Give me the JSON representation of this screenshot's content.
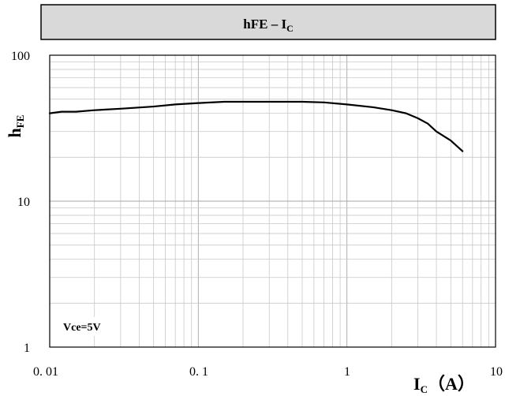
{
  "chart_data": {
    "type": "line",
    "title": {
      "main": "hFE – I",
      "sub": "C"
    },
    "xlabel": {
      "main": "I",
      "sub": "C",
      "unit": "（A）"
    },
    "ylabel": {
      "main": "h",
      "sub": "FE"
    },
    "x_scale": "log",
    "y_scale": "log",
    "xlim": [
      0.01,
      10
    ],
    "ylim": [
      1,
      100
    ],
    "x_ticks": [
      0.01,
      0.1,
      1,
      10
    ],
    "x_tick_labels": [
      "0. 01",
      "0. 1",
      "1",
      "10"
    ],
    "y_ticks": [
      1,
      10,
      100
    ],
    "y_tick_labels": [
      "1",
      "10",
      "100"
    ],
    "grid": true,
    "legend": "none",
    "annotation": "Vce=5V",
    "series": [
      {
        "color": "#000000",
        "x": [
          0.01,
          0.012,
          0.015,
          0.02,
          0.03,
          0.05,
          0.07,
          0.1,
          0.15,
          0.2,
          0.3,
          0.5,
          0.7,
          1.0,
          1.5,
          2.0,
          2.5,
          3.0,
          3.5,
          4.0,
          5.0,
          6.0
        ],
        "y": [
          40,
          41,
          41,
          42,
          43,
          44.5,
          46,
          47,
          48,
          48,
          48,
          48,
          47.5,
          46,
          44,
          42,
          40,
          37,
          34,
          30,
          26,
          22
        ]
      }
    ]
  }
}
